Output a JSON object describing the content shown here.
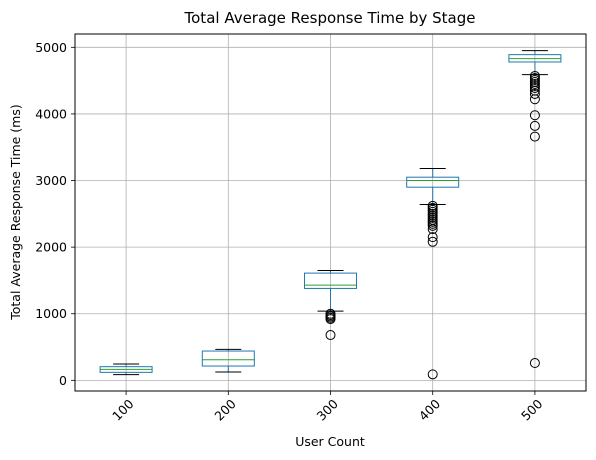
{
  "chart_data": {
    "type": "box",
    "title": "Total Average Response Time by Stage",
    "xlabel": "User Count",
    "ylabel": "Total Average Response Time (ms)",
    "categories": [
      "100",
      "200",
      "300",
      "400",
      "500"
    ],
    "ylim": [
      -160,
      5200
    ],
    "yticks": [
      0,
      1000,
      2000,
      3000,
      4000,
      5000
    ],
    "grid": true,
    "box_color": "#1f77b4",
    "median_color": "#2ca02c",
    "boxes": [
      {
        "label": "100",
        "whisker_low": 85,
        "q1": 120,
        "median": 165,
        "q3": 205,
        "whisker_high": 245,
        "outliers": []
      },
      {
        "label": "200",
        "whisker_low": 125,
        "q1": 215,
        "median": 310,
        "q3": 440,
        "whisker_high": 465,
        "outliers": []
      },
      {
        "label": "300",
        "whisker_low": 1040,
        "q1": 1380,
        "median": 1430,
        "q3": 1610,
        "whisker_high": 1650,
        "outliers": [
          1000,
          980,
          960,
          940,
          920,
          680
        ]
      },
      {
        "label": "400",
        "whisker_low": 2640,
        "q1": 2900,
        "median": 3000,
        "q3": 3050,
        "whisker_high": 3180,
        "outliers": [
          2620,
          2590,
          2560,
          2530,
          2500,
          2470,
          2440,
          2410,
          2380,
          2350,
          2320,
          2270,
          2150,
          2080,
          90
        ]
      },
      {
        "label": "500",
        "whisker_low": 4590,
        "q1": 4780,
        "median": 4830,
        "q3": 4890,
        "whisker_high": 4950,
        "outliers": [
          4570,
          4540,
          4510,
          4480,
          4450,
          4420,
          4390,
          4350,
          4300,
          4220,
          3980,
          3820,
          3660,
          260
        ]
      }
    ]
  }
}
